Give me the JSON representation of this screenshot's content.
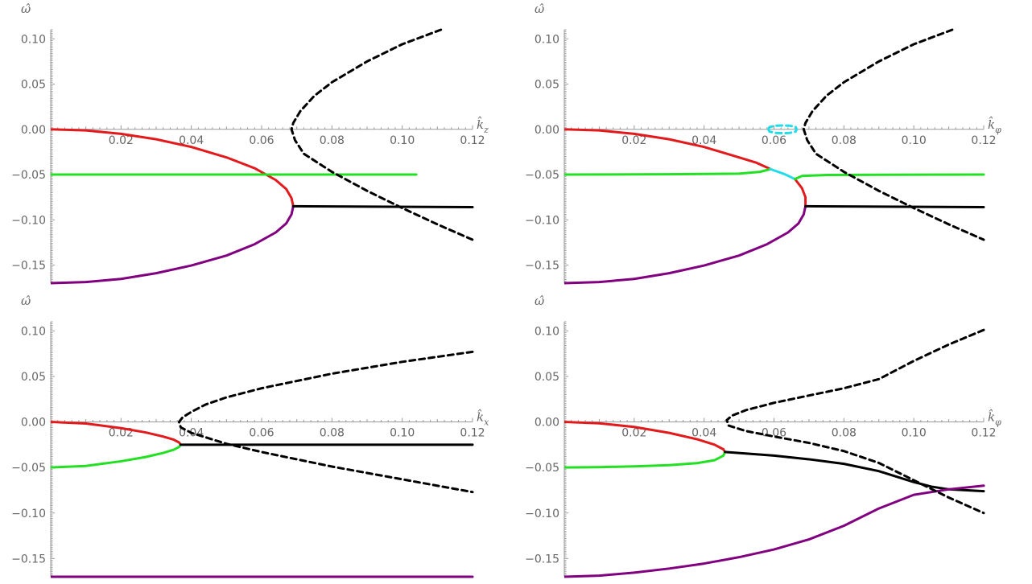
{
  "colors": {
    "red": "#e31a1c",
    "green": "#22e022",
    "purple": "#800080",
    "black": "#000000",
    "cyan": "#22dcea",
    "axis": "#999999",
    "text": "#666666"
  },
  "chart_data": [
    {
      "type": "line",
      "panel": "top-left",
      "xlabel": "k̂_z",
      "ylabel": "ω̂",
      "xlim": [
        0,
        0.12
      ],
      "ylim": [
        -0.17,
        0.11
      ],
      "xticks": [
        "0.02",
        "0.04",
        "0.06",
        "0.08",
        "0.10",
        "0.12"
      ],
      "yticks": [
        "0.10",
        "0.05",
        "0.00",
        "-0.05",
        "-0.10",
        "-0.15"
      ],
      "series": [
        {
          "color": "red",
          "style": "solid",
          "points": [
            [
              0,
              0
            ],
            [
              0.01,
              -0.0012
            ],
            [
              0.02,
              -0.005
            ],
            [
              0.03,
              -0.011
            ],
            [
              0.04,
              -0.0195
            ],
            [
              0.05,
              -0.031
            ],
            [
              0.058,
              -0.043
            ],
            [
              0.064,
              -0.056
            ],
            [
              0.067,
              -0.066
            ],
            [
              0.0685,
              -0.076
            ],
            [
              0.069,
              -0.085
            ]
          ]
        },
        {
          "color": "purple",
          "style": "solid",
          "points": [
            [
              0,
              -0.17
            ],
            [
              0.01,
              -0.1688
            ],
            [
              0.02,
              -0.1653
            ],
            [
              0.03,
              -0.159
            ],
            [
              0.04,
              -0.1505
            ],
            [
              0.05,
              -0.1395
            ],
            [
              0.058,
              -0.127
            ],
            [
              0.064,
              -0.114
            ],
            [
              0.067,
              -0.104
            ],
            [
              0.0685,
              -0.094
            ],
            [
              0.069,
              -0.085
            ]
          ]
        },
        {
          "color": "green",
          "style": "solid",
          "points": [
            [
              0,
              -0.05
            ],
            [
              0.104,
              -0.05
            ]
          ]
        },
        {
          "color": "black",
          "style": "solid",
          "points": [
            [
              0.069,
              -0.085
            ],
            [
              0.12,
              -0.086
            ]
          ]
        },
        {
          "color": "black",
          "style": "dashed",
          "points": [
            [
              0.111,
              0.11
            ],
            [
              0.1,
              0.094
            ],
            [
              0.09,
              0.075
            ],
            [
              0.08,
              0.052
            ],
            [
              0.075,
              0.037
            ],
            [
              0.071,
              0.02
            ],
            [
              0.069,
              0.007
            ],
            [
              0.0685,
              0
            ],
            [
              0.0695,
              -0.012
            ],
            [
              0.072,
              -0.027
            ],
            [
              0.08,
              -0.047
            ],
            [
              0.09,
              -0.068
            ],
            [
              0.1,
              -0.087
            ],
            [
              0.11,
              -0.105
            ],
            [
              0.12,
              -0.122
            ]
          ]
        }
      ]
    },
    {
      "type": "line",
      "panel": "top-right",
      "xlabel": "k̂_φ",
      "ylabel": "ω̂",
      "xlim": [
        0,
        0.12
      ],
      "ylim": [
        -0.17,
        0.11
      ],
      "xticks": [
        "0.02",
        "0.04",
        "0.06",
        "0.08",
        "0.10",
        "0.12"
      ],
      "yticks": [
        "0.10",
        "0.05",
        "0.00",
        "-0.05",
        "-0.10",
        "-0.15"
      ],
      "series": [
        {
          "color": "red",
          "style": "solid",
          "points": [
            [
              0,
              0
            ],
            [
              0.01,
              -0.0012
            ],
            [
              0.02,
              -0.005
            ],
            [
              0.03,
              -0.011
            ],
            [
              0.04,
              -0.0195
            ],
            [
              0.05,
              -0.031
            ],
            [
              0.055,
              -0.037
            ],
            [
              0.059,
              -0.044
            ]
          ]
        },
        {
          "color": "green",
          "style": "solid",
          "points": [
            [
              0,
              -0.05
            ],
            [
              0.03,
              -0.0497
            ],
            [
              0.05,
              -0.049
            ],
            [
              0.056,
              -0.047
            ],
            [
              0.059,
              -0.044
            ]
          ]
        },
        {
          "color": "cyan",
          "style": "solid",
          "points": [
            [
              0.059,
              -0.044
            ],
            [
              0.063,
              -0.0495
            ],
            [
              0.066,
              -0.055
            ]
          ]
        },
        {
          "color": "red",
          "style": "solid",
          "points": [
            [
              0.066,
              -0.055
            ],
            [
              0.068,
              -0.065
            ],
            [
              0.069,
              -0.075
            ],
            [
              0.069,
              -0.084
            ]
          ]
        },
        {
          "color": "green",
          "style": "solid",
          "points": [
            [
              0.066,
              -0.055
            ],
            [
              0.068,
              -0.0515
            ],
            [
              0.075,
              -0.0505
            ],
            [
              0.09,
              -0.0502
            ],
            [
              0.12,
              -0.05
            ]
          ]
        },
        {
          "color": "purple",
          "style": "solid",
          "points": [
            [
              0,
              -0.17
            ],
            [
              0.01,
              -0.1688
            ],
            [
              0.02,
              -0.1653
            ],
            [
              0.03,
              -0.159
            ],
            [
              0.04,
              -0.1505
            ],
            [
              0.05,
              -0.1395
            ],
            [
              0.058,
              -0.127
            ],
            [
              0.064,
              -0.114
            ],
            [
              0.067,
              -0.104
            ],
            [
              0.0685,
              -0.094
            ],
            [
              0.069,
              -0.085
            ]
          ]
        },
        {
          "color": "black",
          "style": "solid",
          "points": [
            [
              0.069,
              -0.085
            ],
            [
              0.12,
              -0.086
            ]
          ]
        },
        {
          "color": "black",
          "style": "dashed",
          "points": [
            [
              0.111,
              0.11
            ],
            [
              0.1,
              0.094
            ],
            [
              0.09,
              0.075
            ],
            [
              0.08,
              0.052
            ],
            [
              0.075,
              0.037
            ],
            [
              0.071,
              0.02
            ],
            [
              0.069,
              0.007
            ],
            [
              0.0685,
              0
            ],
            [
              0.0695,
              -0.012
            ],
            [
              0.072,
              -0.027
            ],
            [
              0.08,
              -0.047
            ],
            [
              0.09,
              -0.068
            ],
            [
              0.1,
              -0.087
            ],
            [
              0.11,
              -0.105
            ],
            [
              0.12,
              -0.122
            ]
          ]
        },
        {
          "color": "cyan",
          "style": "dashed",
          "points": [
            [
              0.0584,
              0
            ],
            [
              0.0587,
              0.0025
            ],
            [
              0.0605,
              0.004
            ],
            [
              0.0625,
              0.0043
            ],
            [
              0.0645,
              0.004
            ],
            [
              0.0662,
              0.0025
            ],
            [
              0.0665,
              0
            ],
            [
              0.0662,
              -0.0025
            ],
            [
              0.0645,
              -0.004
            ],
            [
              0.0625,
              -0.0043
            ],
            [
              0.0605,
              -0.004
            ],
            [
              0.0587,
              -0.0025
            ],
            [
              0.0584,
              0
            ]
          ]
        }
      ]
    },
    {
      "type": "line",
      "panel": "bottom-left",
      "xlabel": "k̂_x",
      "ylabel": "ω̂",
      "xlim": [
        0,
        0.12
      ],
      "ylim": [
        -0.17,
        0.11
      ],
      "xticks": [
        "0.02",
        "0.04",
        "0.06",
        "0.08",
        "0.10",
        "0.12"
      ],
      "yticks": [
        "0.10",
        "0.05",
        "0.00",
        "-0.05",
        "-0.10",
        "-0.15"
      ],
      "series": [
        {
          "color": "red",
          "style": "solid",
          "points": [
            [
              0,
              0
            ],
            [
              0.01,
              -0.0017
            ],
            [
              0.02,
              -0.0068
            ],
            [
              0.027,
              -0.0115
            ],
            [
              0.032,
              -0.016
            ],
            [
              0.035,
              -0.0195
            ],
            [
              0.0365,
              -0.0225
            ],
            [
              0.037,
              -0.025
            ]
          ]
        },
        {
          "color": "green",
          "style": "solid",
          "points": [
            [
              0,
              -0.05
            ],
            [
              0.01,
              -0.0483
            ],
            [
              0.02,
              -0.0432
            ],
            [
              0.027,
              -0.0385
            ],
            [
              0.032,
              -0.034
            ],
            [
              0.035,
              -0.0305
            ],
            [
              0.0365,
              -0.0275
            ],
            [
              0.037,
              -0.025
            ]
          ]
        },
        {
          "color": "black",
          "style": "solid",
          "points": [
            [
              0.037,
              -0.025
            ],
            [
              0.12,
              -0.025
            ]
          ]
        },
        {
          "color": "purple",
          "style": "solid",
          "points": [
            [
              0,
              -0.17
            ],
            [
              0.12,
              -0.17
            ]
          ]
        },
        {
          "color": "black",
          "style": "dashed",
          "points": [
            [
              0.12,
              0.077
            ],
            [
              0.1,
              0.066
            ],
            [
              0.08,
              0.053
            ],
            [
              0.06,
              0.037
            ],
            [
              0.05,
              0.027
            ],
            [
              0.044,
              0.019
            ],
            [
              0.04,
              0.011
            ],
            [
              0.0375,
              0.005
            ],
            [
              0.0365,
              0
            ],
            [
              0.037,
              -0.006
            ],
            [
              0.04,
              -0.012
            ],
            [
              0.05,
              -0.024
            ],
            [
              0.06,
              -0.033
            ],
            [
              0.08,
              -0.049
            ],
            [
              0.1,
              -0.063
            ],
            [
              0.12,
              -0.077
            ]
          ]
        }
      ]
    },
    {
      "type": "line",
      "panel": "bottom-right",
      "xlabel": "k̂_φ",
      "ylabel": "ω̂",
      "xlim": [
        0,
        0.12
      ],
      "ylim": [
        -0.17,
        0.11
      ],
      "xticks": [
        "0.02",
        "0.04",
        "0.06",
        "0.08",
        "0.10",
        "0.12"
      ],
      "yticks": [
        "0.10",
        "0.05",
        "0.00",
        "-0.05",
        "-0.10",
        "-0.15"
      ],
      "series": [
        {
          "color": "red",
          "style": "solid",
          "points": [
            [
              0,
              0
            ],
            [
              0.01,
              -0.0015
            ],
            [
              0.02,
              -0.0055
            ],
            [
              0.03,
              -0.012
            ],
            [
              0.038,
              -0.019
            ],
            [
              0.043,
              -0.025
            ],
            [
              0.0455,
              -0.03
            ],
            [
              0.046,
              -0.033
            ]
          ]
        },
        {
          "color": "green",
          "style": "solid",
          "points": [
            [
              0,
              -0.05
            ],
            [
              0.01,
              -0.0496
            ],
            [
              0.02,
              -0.0488
            ],
            [
              0.03,
              -0.0474
            ],
            [
              0.038,
              -0.0452
            ],
            [
              0.043,
              -0.042
            ],
            [
              0.0455,
              -0.037
            ],
            [
              0.046,
              -0.033
            ]
          ]
        },
        {
          "color": "black",
          "style": "solid",
          "points": [
            [
              0.046,
              -0.033
            ],
            [
              0.06,
              -0.037
            ],
            [
              0.07,
              -0.041
            ],
            [
              0.08,
              -0.046
            ],
            [
              0.09,
              -0.054
            ],
            [
              0.1,
              -0.066
            ],
            [
              0.105,
              -0.071
            ],
            [
              0.11,
              -0.074
            ],
            [
              0.12,
              -0.076
            ]
          ]
        },
        {
          "color": "purple",
          "style": "solid",
          "points": [
            [
              0,
              -0.17
            ],
            [
              0.01,
              -0.1688
            ],
            [
              0.02,
              -0.1655
            ],
            [
              0.03,
              -0.161
            ],
            [
              0.04,
              -0.1555
            ],
            [
              0.05,
              -0.1485
            ],
            [
              0.06,
              -0.14
            ],
            [
              0.07,
              -0.129
            ],
            [
              0.08,
              -0.114
            ],
            [
              0.09,
              -0.095
            ],
            [
              0.1,
              -0.08
            ],
            [
              0.11,
              -0.074
            ],
            [
              0.12,
              -0.07
            ]
          ]
        },
        {
          "color": "black",
          "style": "dashed",
          "points": [
            [
              0.12,
              0.101
            ],
            [
              0.11,
              0.085
            ],
            [
              0.1,
              0.067
            ],
            [
              0.09,
              0.047
            ],
            [
              0.08,
              0.037
            ],
            [
              0.07,
              0.029
            ],
            [
              0.06,
              0.021
            ],
            [
              0.052,
              0.013
            ],
            [
              0.048,
              0.007
            ],
            [
              0.0465,
              0.002
            ],
            [
              0.047,
              -0.004
            ],
            [
              0.052,
              -0.01
            ],
            [
              0.06,
              -0.016
            ],
            [
              0.07,
              -0.023
            ],
            [
              0.08,
              -0.032
            ],
            [
              0.09,
              -0.045
            ],
            [
              0.1,
              -0.064
            ],
            [
              0.11,
              -0.083
            ],
            [
              0.12,
              -0.1
            ]
          ]
        }
      ]
    }
  ]
}
